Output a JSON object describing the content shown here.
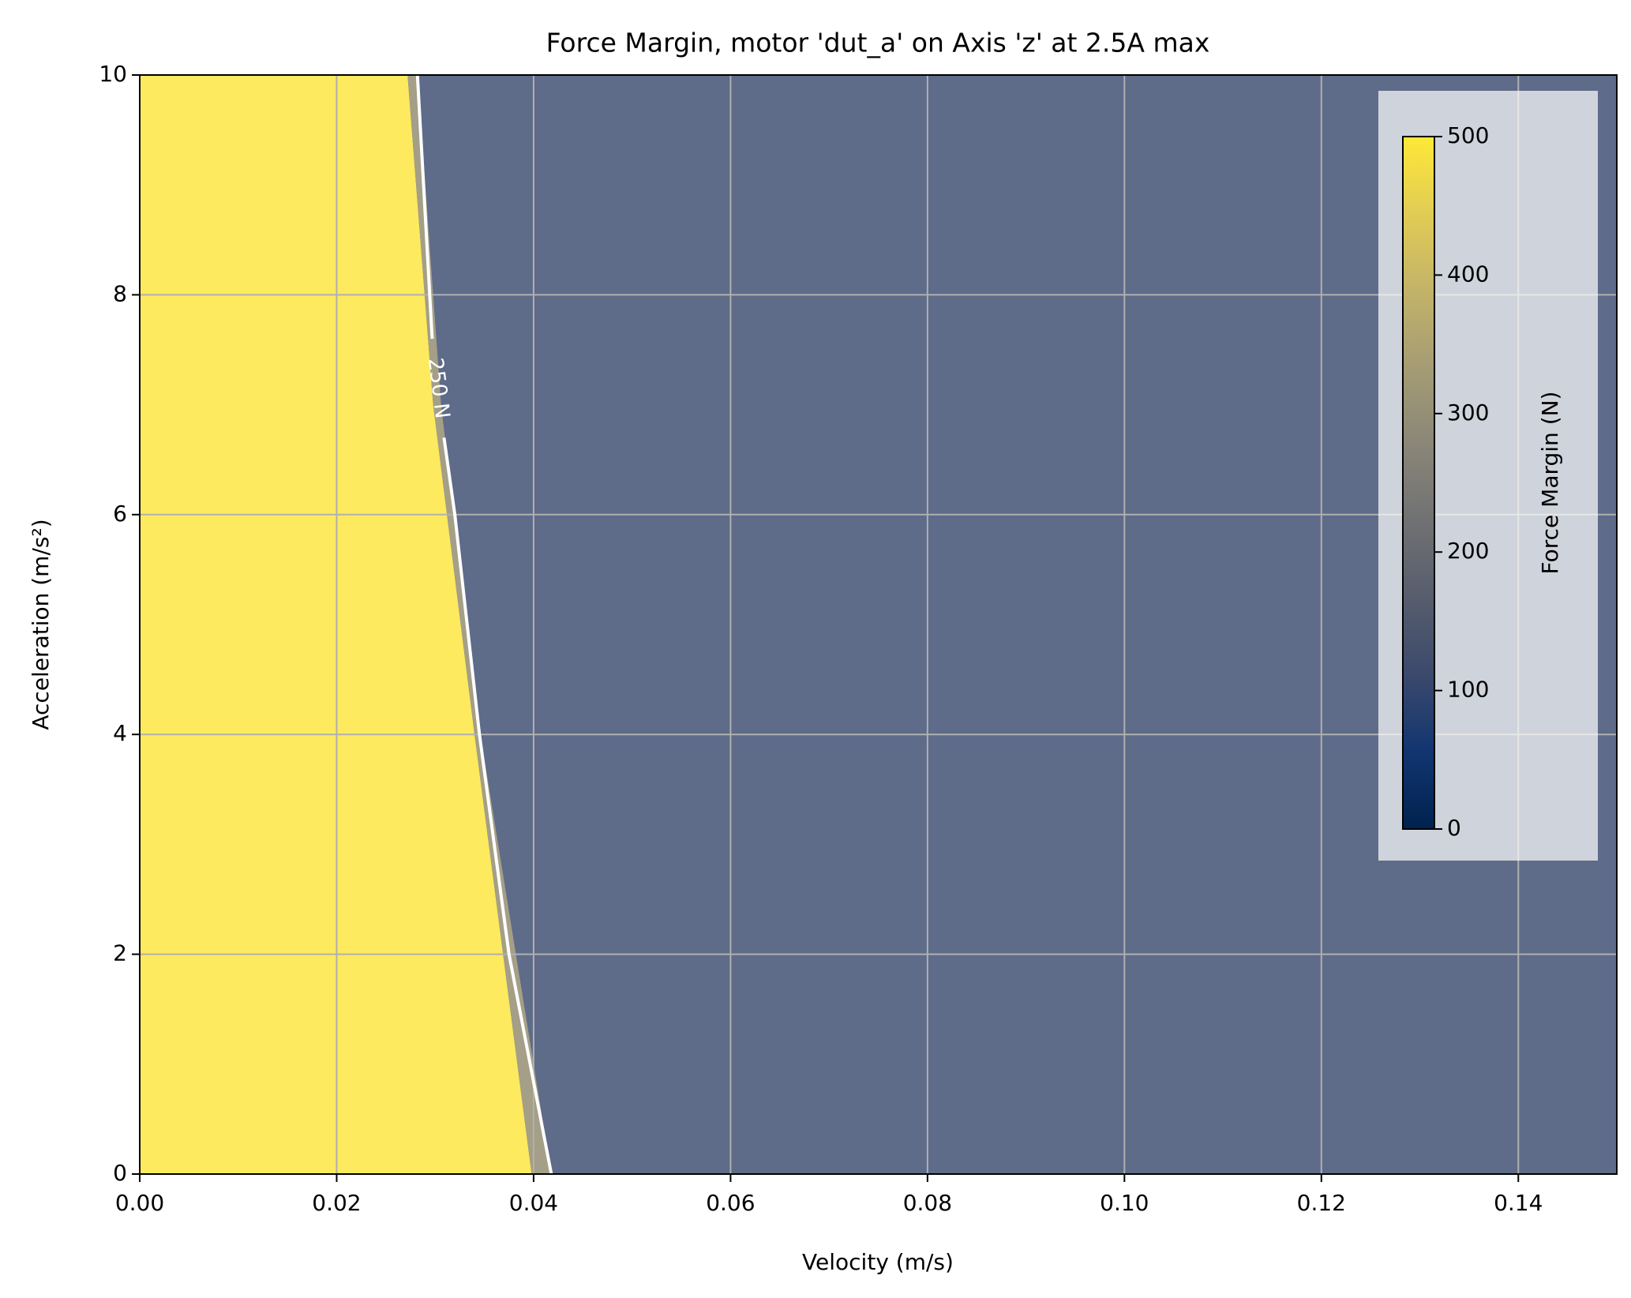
{
  "chart_data": {
    "type": "contour",
    "title": "Force Margin, motor 'dut_a' on Axis 'z' at 2.5A max",
    "xlabel": "Velocity (m/s)",
    "ylabel": "Acceleration (m/s²)",
    "xlim": [
      0,
      0.15
    ],
    "ylim": [
      0,
      10
    ],
    "xticks": [
      {
        "value": 0,
        "label": "0.00"
      },
      {
        "value": 0.02,
        "label": "0.02"
      },
      {
        "value": 0.04,
        "label": "0.04"
      },
      {
        "value": 0.06,
        "label": "0.06"
      },
      {
        "value": 0.08,
        "label": "0.08"
      },
      {
        "value": 0.1,
        "label": "0.10"
      },
      {
        "value": 0.12,
        "label": "0.12"
      },
      {
        "value": 0.14,
        "label": "0.14"
      }
    ],
    "yticks": [
      0,
      2,
      4,
      6,
      8,
      10
    ],
    "grid": true,
    "filled_regions": [
      {
        "color": "#5e6b89",
        "x": [
          0,
          0.15,
          0.15,
          0
        ],
        "y": [
          0,
          0,
          10,
          10
        ]
      },
      {
        "color": "#fdea5e",
        "x": [
          0,
          0.0272,
          0.0298,
          0.034,
          0.0398,
          0
        ],
        "y": [
          10,
          10,
          7,
          4,
          0,
          0
        ]
      },
      {
        "color": "#a49f86",
        "x": [
          0.0272,
          0.0282,
          0.0306,
          0.0346,
          0.0418,
          0.0398,
          0.034,
          0.0298
        ],
        "y": [
          10,
          10,
          7,
          4,
          0,
          0,
          4,
          7
        ]
      }
    ],
    "contour_line": {
      "level": 250,
      "label": "250 N",
      "color": "#ffffff",
      "x": [
        0.0282,
        0.0297,
        null,
        0.0309,
        0.032,
        0.0345,
        0.0375,
        0.0418
      ],
      "y": [
        10,
        7.6,
        null,
        6.7,
        6,
        4,
        2,
        0
      ]
    },
    "colorbar": {
      "label": "Force Margin (N)",
      "clim": [
        0,
        500
      ],
      "ticks": [
        0,
        100,
        200,
        300,
        400,
        500
      ],
      "colormap": [
        "#00224e",
        "#123570",
        "#3b496c",
        "#575d6d",
        "#707173",
        "#8a8678",
        "#a59c74",
        "#c3b369",
        "#e1cc55",
        "#fee838"
      ]
    }
  }
}
